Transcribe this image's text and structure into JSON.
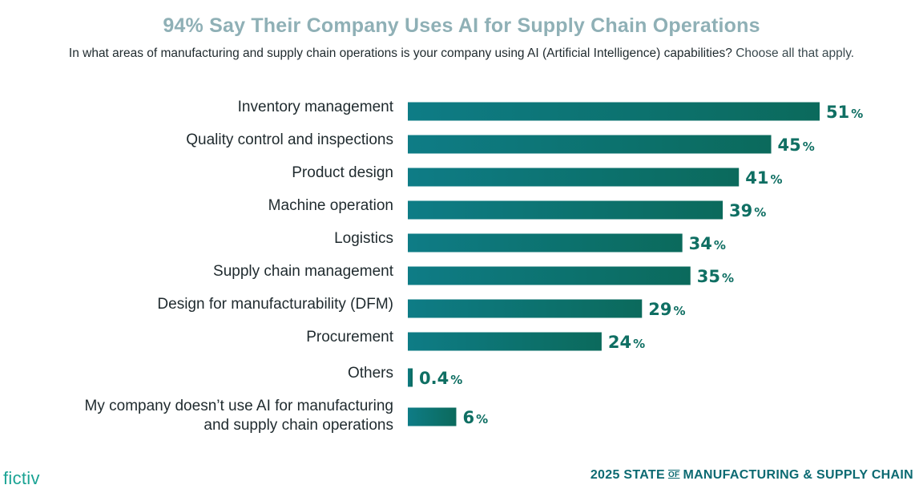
{
  "chart_data": {
    "type": "bar",
    "orientation": "horizontal",
    "title": "94% Say Their Company Uses AI for Supply Chain Operations",
    "subtitle": "In what areas of manufacturing and supply chain operations is your company using AI (Artificial Intelligence) capabilities?",
    "subtitle_note": "Choose all that apply.",
    "xlim": [
      0,
      51
    ],
    "value_suffix": "%",
    "categories": [
      [
        "Inventory management"
      ],
      [
        "Quality control and inspections"
      ],
      [
        "Product design"
      ],
      [
        "Machine operation"
      ],
      [
        "Logistics"
      ],
      [
        "Supply chain management"
      ],
      [
        "Design for manufacturability (DFM)"
      ],
      [
        "Procurement"
      ],
      [
        "Others"
      ],
      [
        "My company doesn’t use AI for manufacturing",
        "and supply chain operations"
      ]
    ],
    "values": [
      51,
      45,
      41,
      39,
      34,
      35,
      29,
      24,
      0.4,
      6
    ],
    "value_labels": [
      "51",
      "45",
      "41",
      "39",
      "34",
      "35",
      "29",
      "24",
      "0.4",
      "6"
    ],
    "colors": {
      "bar_start": "#0e7c86",
      "bar_end": "#0b6a5c",
      "value_text": "#0f6f63"
    }
  },
  "footer": {
    "brand": "fictiv",
    "report_prefix": "2025 STATE",
    "report_of": "OF",
    "report_suffix": "MANUFACTURING & SUPPLY CHAIN"
  }
}
